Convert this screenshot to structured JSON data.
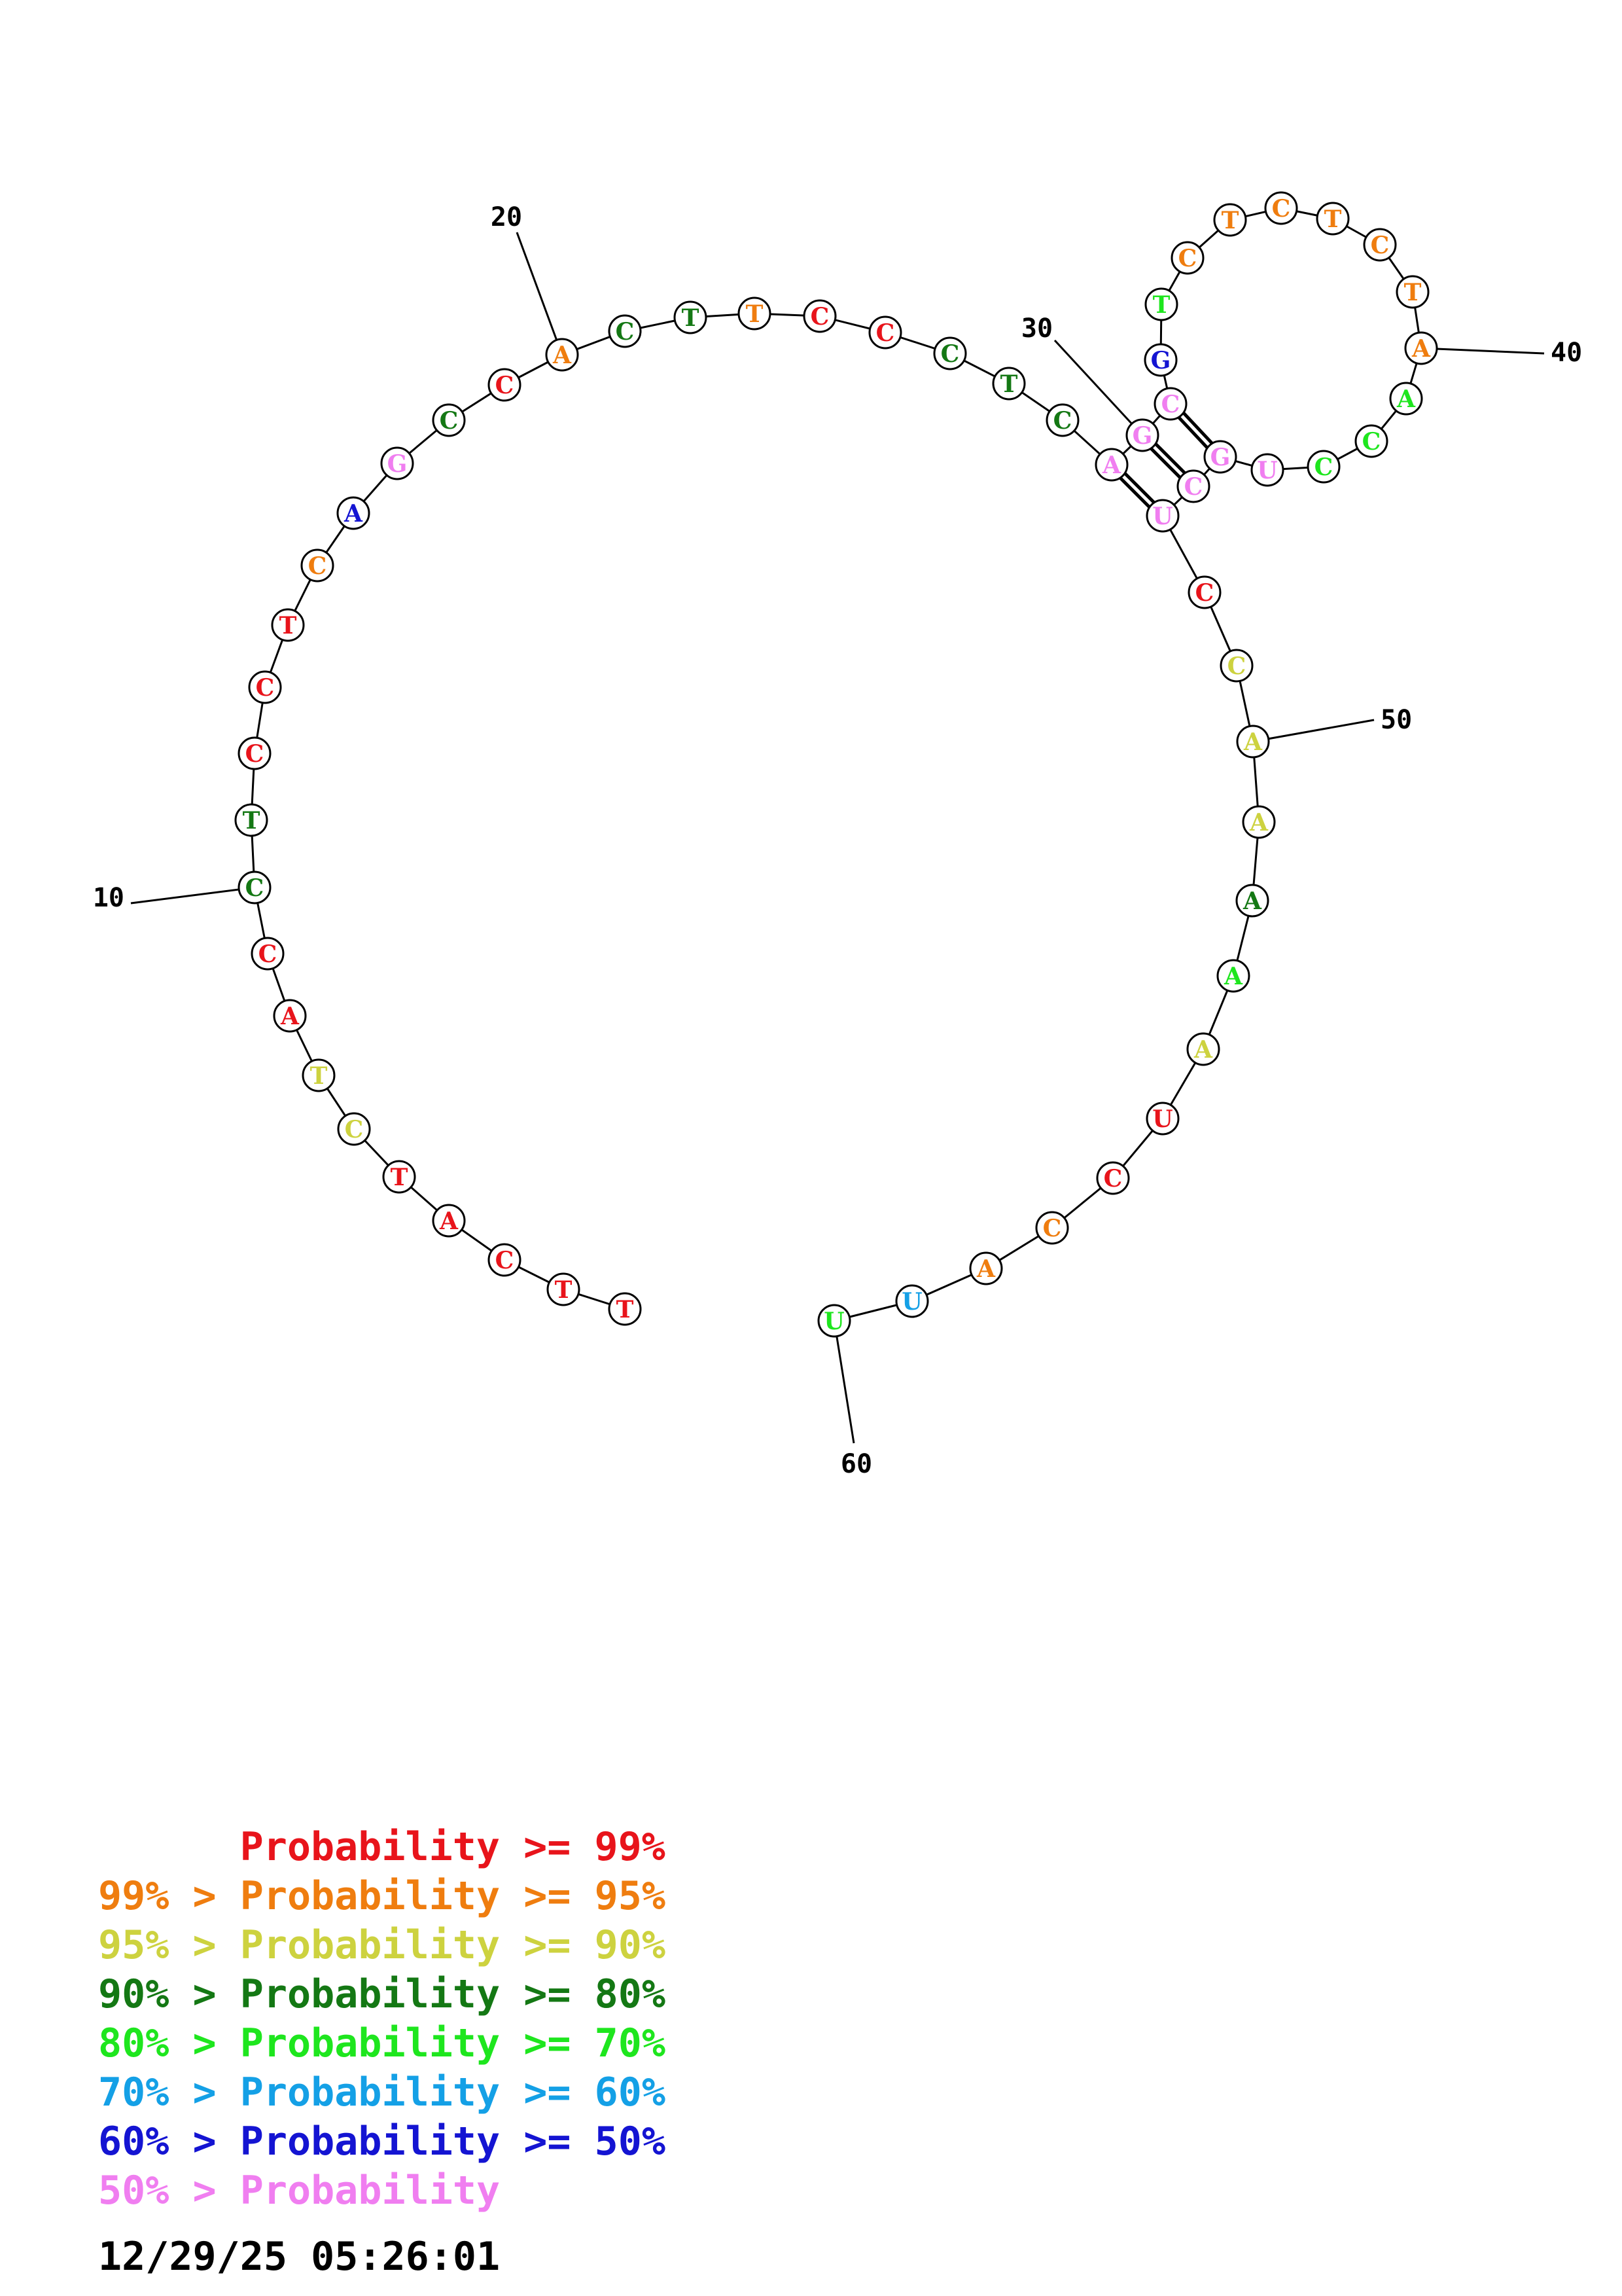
{
  "colors": {
    "c99": "#e8141b",
    "c95": "#ef7d0f",
    "c90": "#cdd23f",
    "c80": "#147814",
    "c70": "#1ee61e",
    "c60": "#14a0e6",
    "c50": "#1414d2",
    "c00": "#f07ef0"
  },
  "sequence": [
    {
      "n": 1,
      "base": "T",
      "c": "c99"
    },
    {
      "n": 2,
      "base": "T",
      "c": "c99"
    },
    {
      "n": 3,
      "base": "C",
      "c": "c99"
    },
    {
      "n": 4,
      "base": "A",
      "c": "c99"
    },
    {
      "n": 5,
      "base": "T",
      "c": "c99"
    },
    {
      "n": 6,
      "base": "C",
      "c": "c90"
    },
    {
      "n": 7,
      "base": "T",
      "c": "c90"
    },
    {
      "n": 8,
      "base": "A",
      "c": "c99"
    },
    {
      "n": 9,
      "base": "C",
      "c": "c99"
    },
    {
      "n": 10,
      "base": "C",
      "c": "c80"
    },
    {
      "n": 11,
      "base": "T",
      "c": "c80"
    },
    {
      "n": 12,
      "base": "C",
      "c": "c99"
    },
    {
      "n": 13,
      "base": "C",
      "c": "c99"
    },
    {
      "n": 14,
      "base": "T",
      "c": "c99"
    },
    {
      "n": 15,
      "base": "C",
      "c": "c95"
    },
    {
      "n": 16,
      "base": "A",
      "c": "c50"
    },
    {
      "n": 17,
      "base": "G",
      "c": "c00"
    },
    {
      "n": 18,
      "base": "C",
      "c": "c80"
    },
    {
      "n": 19,
      "base": "C",
      "c": "c99"
    },
    {
      "n": 20,
      "base": "A",
      "c": "c95"
    },
    {
      "n": 21,
      "base": "C",
      "c": "c80"
    },
    {
      "n": 22,
      "base": "T",
      "c": "c80"
    },
    {
      "n": 23,
      "base": "T",
      "c": "c95"
    },
    {
      "n": 24,
      "base": "C",
      "c": "c99"
    },
    {
      "n": 25,
      "base": "C",
      "c": "c99"
    },
    {
      "n": 26,
      "base": "C",
      "c": "c80"
    },
    {
      "n": 27,
      "base": "T",
      "c": "c80"
    },
    {
      "n": 28,
      "base": "C",
      "c": "c80"
    },
    {
      "n": 29,
      "base": "A",
      "c": "c00"
    },
    {
      "n": 30,
      "base": "G",
      "c": "c00"
    },
    {
      "n": 31,
      "base": "C",
      "c": "c00"
    },
    {
      "n": 32,
      "base": "G",
      "c": "c50"
    },
    {
      "n": 33,
      "base": "T",
      "c": "c70"
    },
    {
      "n": 34,
      "base": "C",
      "c": "c95"
    },
    {
      "n": 35,
      "base": "T",
      "c": "c95"
    },
    {
      "n": 36,
      "base": "C",
      "c": "c95"
    },
    {
      "n": 37,
      "base": "T",
      "c": "c95"
    },
    {
      "n": 38,
      "base": "C",
      "c": "c95"
    },
    {
      "n": 39,
      "base": "T",
      "c": "c95"
    },
    {
      "n": 40,
      "base": "A",
      "c": "c95"
    },
    {
      "n": 41,
      "base": "A",
      "c": "c70"
    },
    {
      "n": 42,
      "base": "C",
      "c": "c70"
    },
    {
      "n": 43,
      "base": "C",
      "c": "c70"
    },
    {
      "n": 44,
      "base": "U",
      "c": "c00"
    },
    {
      "n": 45,
      "base": "G",
      "c": "c00"
    },
    {
      "n": 46,
      "base": "C",
      "c": "c00"
    },
    {
      "n": 47,
      "base": "U",
      "c": "c00"
    },
    {
      "n": 48,
      "base": "C",
      "c": "c99"
    },
    {
      "n": 49,
      "base": "C",
      "c": "c90"
    },
    {
      "n": 50,
      "base": "A",
      "c": "c90"
    },
    {
      "n": 51,
      "base": "A",
      "c": "c90"
    },
    {
      "n": 52,
      "base": "A",
      "c": "c80"
    },
    {
      "n": 53,
      "base": "A",
      "c": "c70"
    },
    {
      "n": 54,
      "base": "A",
      "c": "c90"
    },
    {
      "n": 55,
      "base": "U",
      "c": "c99"
    },
    {
      "n": 56,
      "base": "C",
      "c": "c99"
    },
    {
      "n": 57,
      "base": "C",
      "c": "c95"
    },
    {
      "n": 58,
      "base": "A",
      "c": "c95"
    },
    {
      "n": 59,
      "base": "U",
      "c": "c60"
    },
    {
      "n": 60,
      "base": "U",
      "c": "c70"
    }
  ],
  "pairs": [
    [
      29,
      47
    ],
    [
      30,
      46
    ],
    [
      31,
      45
    ]
  ],
  "position_labels": [
    {
      "n": 10,
      "text": "10"
    },
    {
      "n": 20,
      "text": "20"
    },
    {
      "n": 30,
      "text": "30"
    },
    {
      "n": 40,
      "text": "40"
    },
    {
      "n": 50,
      "text": "50"
    },
    {
      "n": 60,
      "text": "60"
    }
  ],
  "legend": [
    {
      "prefix": "",
      "text": "Probability >= 99%",
      "c": "c99"
    },
    {
      "prefix": "99% > ",
      "text": "Probability >= 95%",
      "c": "c95"
    },
    {
      "prefix": "95% > ",
      "text": "Probability >= 90%",
      "c": "c90"
    },
    {
      "prefix": "90% > ",
      "text": "Probability >= 80%",
      "c": "c80"
    },
    {
      "prefix": "80% > ",
      "text": "Probability >= 70%",
      "c": "c70"
    },
    {
      "prefix": "70% > ",
      "text": "Probability >= 60%",
      "c": "c60"
    },
    {
      "prefix": "60% > ",
      "text": "Probability >= 50%",
      "c": "c50"
    },
    {
      "prefix": "50% > ",
      "text": "Probability",
      "c": "c00"
    }
  ],
  "timestamp": "12/29/25 05:26:01"
}
